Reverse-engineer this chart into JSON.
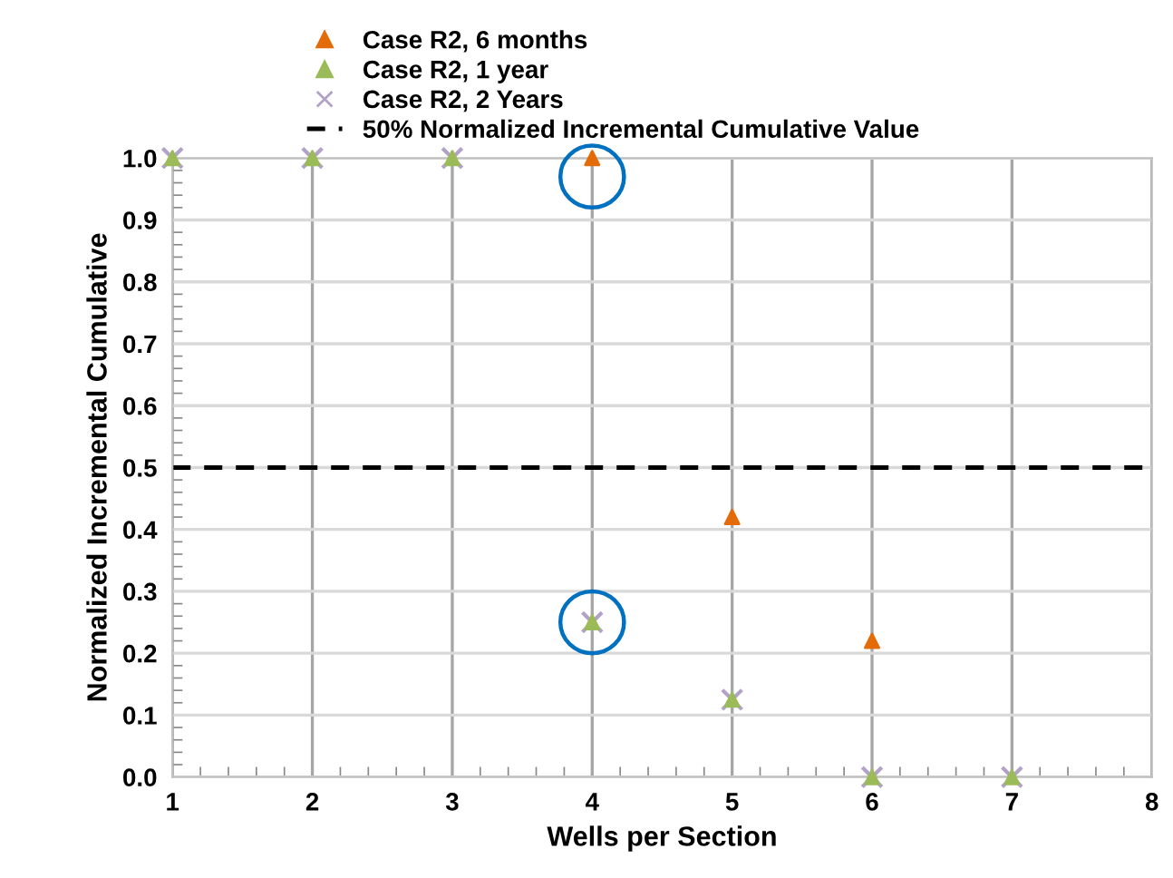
{
  "chart_data": {
    "type": "scatter",
    "xlabel": "Wells per Section",
    "ylabel": "Normalized Incremental Cumulative",
    "x": [
      1,
      2,
      3,
      4,
      5,
      6,
      7
    ],
    "series": [
      {
        "name": "Case R2, 6 months",
        "color": "#e36c09",
        "marker": "triangle",
        "values": [
          null,
          null,
          null,
          1.0,
          0.42,
          0.22,
          null
        ]
      },
      {
        "name": "Case R2, 1 year",
        "color": "#9bbb59",
        "marker": "triangle",
        "values": [
          1.0,
          1.0,
          1.0,
          0.25,
          0.125,
          0.0,
          0.0
        ]
      },
      {
        "name": "Case R2, 2 Years",
        "color": "#b3a2c7",
        "marker": "cross",
        "values": [
          1.0,
          1.0,
          1.0,
          0.25,
          0.125,
          0.0,
          0.0
        ]
      }
    ],
    "ref_lines": [
      {
        "axis": "y",
        "value": 0.5,
        "label": "50% Normalized Incremental Cumulative Value",
        "color": "#000000",
        "line_style": "dashed"
      }
    ],
    "xlim": [
      1,
      8
    ],
    "xticks": [
      1,
      2,
      3,
      4,
      5,
      6,
      7,
      8
    ],
    "ylim": [
      0,
      1.0
    ],
    "yticks": [
      {
        "value": 0,
        "label": "0.0"
      },
      {
        "value": 0.1,
        "label": "0.1"
      },
      {
        "value": 0.2,
        "label": "0.2"
      },
      {
        "value": 0.3,
        "label": "0.3"
      },
      {
        "value": 0.4,
        "label": "0.4"
      },
      {
        "value": 0.5,
        "label": "0.5"
      },
      {
        "value": 0.6,
        "label": "0.6"
      },
      {
        "value": 0.7,
        "label": "0.7"
      },
      {
        "value": 0.8,
        "label": "0.8"
      },
      {
        "value": 0.9,
        "label": "0.9"
      },
      {
        "value": 1.0,
        "label": "1.0"
      }
    ],
    "grid": true,
    "legend": "top"
  }
}
